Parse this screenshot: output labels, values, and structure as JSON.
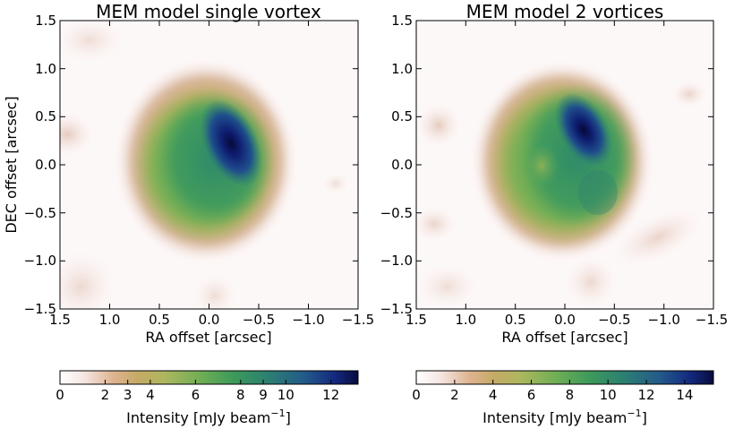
{
  "chart_data": [
    {
      "type": "heatmap",
      "title": "MEM model single vortex",
      "xlabel": "RA offset [arcsec]",
      "ylabel": "DEC offset [arcsec]",
      "xlim": [
        1.5,
        -1.5
      ],
      "ylim": [
        -1.5,
        1.5
      ],
      "x_ticks": [
        "1.5",
        "1.0",
        "0.5",
        "0.0",
        "−0.5",
        "−1.0",
        "−1.5"
      ],
      "y_ticks": [
        "1.5",
        "1.0",
        "0.5",
        "0.0",
        "−0.5",
        "−1.0",
        "−1.5"
      ],
      "peak": {
        "ra": -0.2,
        "dec": 0.22,
        "value": 13.0
      },
      "colorbar": {
        "label": "Intensity [mJy beam",
        "label_exp": "−1",
        "label_end": "]",
        "ticks": [
          "0",
          "2",
          "3",
          "4",
          "6",
          "8",
          "9",
          "10",
          "12"
        ],
        "tick_values": [
          0,
          2,
          3,
          4,
          6,
          8,
          9,
          10,
          12
        ],
        "range": [
          0,
          13.2
        ]
      }
    },
    {
      "type": "heatmap",
      "title": "MEM model 2 vortices",
      "xlabel": "RA offset [arcsec]",
      "ylabel": "",
      "xlim": [
        1.5,
        -1.5
      ],
      "ylim": [
        -1.5,
        1.5
      ],
      "x_ticks": [
        "1.5",
        "1.0",
        "0.5",
        "0.0",
        "−0.5",
        "−1.0",
        "−1.5"
      ],
      "y_ticks": [
        "1.5",
        "1.0",
        "0.5",
        "0.0",
        "−0.5",
        "−1.0",
        "−1.5"
      ],
      "peak": {
        "ra": -0.25,
        "dec": 0.35,
        "value": 15.5
      },
      "colorbar": {
        "label": "Intensity [mJy beam",
        "label_exp": "−1",
        "label_end": "]",
        "ticks": [
          "0",
          "2",
          "4",
          "6",
          "8",
          "10",
          "12",
          "14"
        ],
        "tick_values": [
          0,
          2,
          4,
          6,
          8,
          10,
          12,
          14
        ],
        "range": [
          0,
          15.5
        ]
      }
    }
  ],
  "colormap": {
    "name": "gist_earth_r",
    "stops": [
      "#ffffff",
      "#f5e6e3",
      "#deb38f",
      "#c5aa66",
      "#adb75f",
      "#70ae55",
      "#3e9a5a",
      "#2c7f72",
      "#235a8a",
      "#142a80",
      "#080c3e"
    ]
  }
}
